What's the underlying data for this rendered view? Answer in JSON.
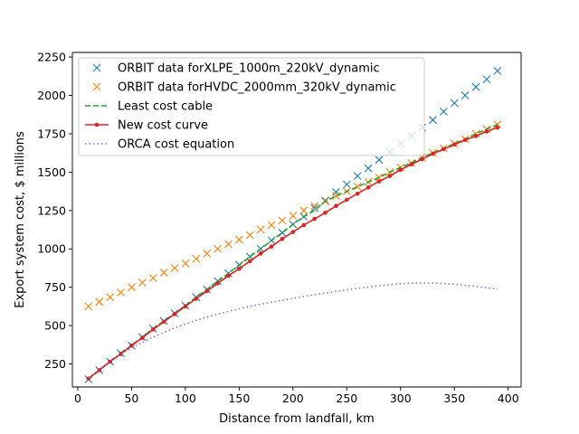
{
  "chart_data": {
    "type": "line",
    "title": "",
    "xlabel": "Distance from landfall, km",
    "ylabel": "Export system cost, $ millions",
    "xlim": [
      -5,
      412
    ],
    "ylim": [
      100,
      2280
    ],
    "xticks": [
      0,
      50,
      100,
      150,
      200,
      250,
      300,
      350,
      400
    ],
    "yticks": [
      250,
      500,
      750,
      1000,
      1250,
      1500,
      1750,
      2000,
      2250
    ],
    "grid": false,
    "legend_position": "top-left",
    "series": [
      {
        "name": "ORBIT data forXLPE_1000m_220kV_dynamic",
        "style": "x-markers",
        "color": "#1f77b4",
        "x": [
          10,
          20,
          30,
          40,
          50,
          60,
          70,
          80,
          90,
          100,
          110,
          120,
          130,
          140,
          150,
          160,
          170,
          180,
          190,
          200,
          210,
          220,
          230,
          240,
          250,
          260,
          270,
          280,
          290,
          300,
          310,
          320,
          330,
          340,
          350,
          360,
          370,
          380,
          390
        ],
        "y": [
          150,
          210,
          265,
          320,
          370,
          425,
          480,
          530,
          580,
          630,
          685,
          735,
          790,
          840,
          895,
          950,
          1000,
          1055,
          1105,
          1160,
          1210,
          1265,
          1315,
          1370,
          1420,
          1475,
          1525,
          1580,
          1630,
          1685,
          1735,
          1790,
          1840,
          1895,
          1950,
          2000,
          2055,
          2105,
          2160
        ]
      },
      {
        "name": "ORBIT data forHVDC_2000mm_320kV_dynamic",
        "style": "x-markers",
        "color": "#ff7f0e",
        "x": [
          10,
          20,
          30,
          40,
          50,
          60,
          70,
          80,
          90,
          100,
          110,
          120,
          130,
          140,
          150,
          160,
          170,
          180,
          190,
          200,
          210,
          220,
          230,
          240,
          250,
          260,
          270,
          280,
          290,
          300,
          310,
          320,
          330,
          340,
          350,
          360,
          370,
          380,
          390
        ],
        "y": [
          625,
          655,
          685,
          715,
          750,
          780,
          810,
          845,
          875,
          905,
          935,
          970,
          1000,
          1030,
          1060,
          1090,
          1125,
          1155,
          1185,
          1215,
          1250,
          1280,
          1310,
          1345,
          1375,
          1405,
          1435,
          1465,
          1500,
          1530,
          1560,
          1595,
          1625,
          1655,
          1685,
          1715,
          1750,
          1780,
          1810
        ]
      },
      {
        "name": "Least cost cable",
        "style": "dashed",
        "color": "#2ca02c",
        "x": [
          10,
          20,
          30,
          40,
          50,
          60,
          70,
          80,
          90,
          100,
          110,
          120,
          130,
          140,
          150,
          160,
          170,
          180,
          190,
          200,
          210,
          220,
          230,
          240,
          250,
          260,
          270,
          280,
          290,
          300,
          310,
          320,
          330,
          340,
          350,
          360,
          370,
          380,
          390
        ],
        "y": [
          150,
          210,
          265,
          320,
          370,
          425,
          480,
          530,
          580,
          630,
          685,
          735,
          790,
          840,
          895,
          950,
          1000,
          1055,
          1105,
          1160,
          1210,
          1250,
          1310,
          1345,
          1375,
          1405,
          1435,
          1465,
          1500,
          1530,
          1560,
          1595,
          1625,
          1655,
          1685,
          1715,
          1750,
          1780,
          1810
        ]
      },
      {
        "name": "New cost curve",
        "style": "line-dot",
        "color": "#d62728",
        "x": [
          10,
          20,
          30,
          40,
          50,
          60,
          70,
          80,
          90,
          100,
          110,
          120,
          130,
          140,
          150,
          160,
          170,
          180,
          190,
          200,
          210,
          220,
          230,
          240,
          250,
          260,
          270,
          280,
          290,
          300,
          310,
          320,
          330,
          340,
          350,
          360,
          370,
          380,
          390
        ],
        "y": [
          155,
          210,
          265,
          315,
          370,
          420,
          475,
          525,
          575,
          625,
          675,
          725,
          775,
          825,
          870,
          920,
          970,
          1015,
          1065,
          1110,
          1155,
          1195,
          1235,
          1280,
          1320,
          1360,
          1400,
          1440,
          1475,
          1515,
          1550,
          1585,
          1620,
          1650,
          1680,
          1710,
          1735,
          1765,
          1790
        ]
      },
      {
        "name": "ORCA cost equation",
        "style": "dotted",
        "color": "#9467bd",
        "x": [
          10,
          30,
          50,
          70,
          90,
          110,
          130,
          150,
          170,
          190,
          210,
          230,
          250,
          270,
          290,
          310,
          330,
          350,
          370,
          390
        ],
        "y": [
          160,
          270,
          355,
          425,
          485,
          535,
          575,
          610,
          640,
          665,
          690,
          712,
          733,
          752,
          767,
          777,
          778,
          770,
          755,
          738
        ]
      }
    ]
  }
}
